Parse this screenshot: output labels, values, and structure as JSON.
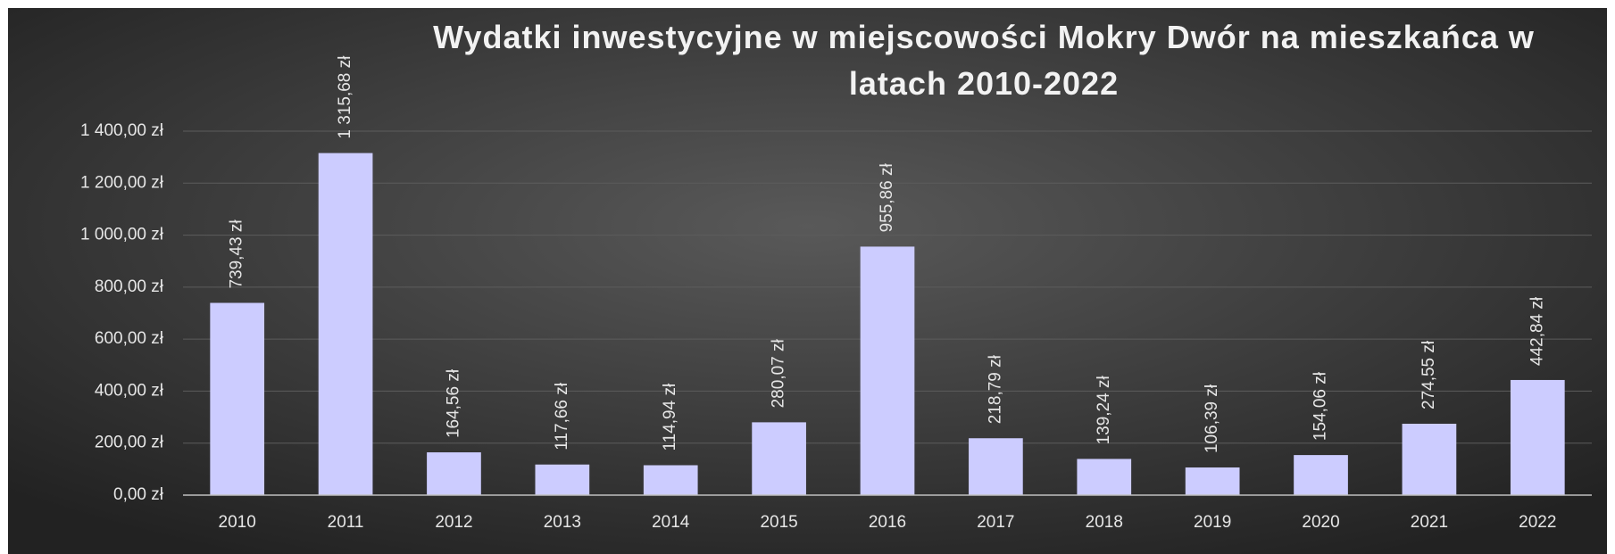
{
  "chart_data": {
    "type": "bar",
    "title": "Wydatki inwestycyjne w miejscowości Mokry Dwór na mieszkańca w latach 2010-2022",
    "categories": [
      "2010",
      "2011",
      "2012",
      "2013",
      "2014",
      "2015",
      "2016",
      "2017",
      "2018",
      "2019",
      "2020",
      "2021",
      "2022"
    ],
    "values": [
      739.43,
      1315.68,
      164.56,
      117.66,
      114.94,
      280.07,
      955.86,
      218.79,
      139.24,
      106.39,
      154.06,
      274.55,
      442.84
    ],
    "value_labels": [
      "739,43 zł",
      "1 315,68 zł",
      "164,56 zł",
      "117,66 zł",
      "114,94 zł",
      "280,07 zł",
      "955,86 zł",
      "218,79 zł",
      "139,24 zł",
      "106,39 zł",
      "154,06 zł",
      "274,55 zł",
      "442,84 zł"
    ],
    "color": "#ccccff",
    "ylim": [
      0,
      1400
    ],
    "yticks": [
      {
        "value": 0,
        "label": "0,00 zł"
      },
      {
        "value": 200,
        "label": "200,00 zł"
      },
      {
        "value": 400,
        "label": "400,00 zł"
      },
      {
        "value": 600,
        "label": "600,00 zł"
      },
      {
        "value": 800,
        "label": "800,00 zł"
      },
      {
        "value": 1000,
        "label": "1 000,00 zł"
      },
      {
        "value": 1200,
        "label": "1 200,00 zł"
      },
      {
        "value": 1400,
        "label": "1 400,00 zł"
      }
    ],
    "grid": true
  }
}
